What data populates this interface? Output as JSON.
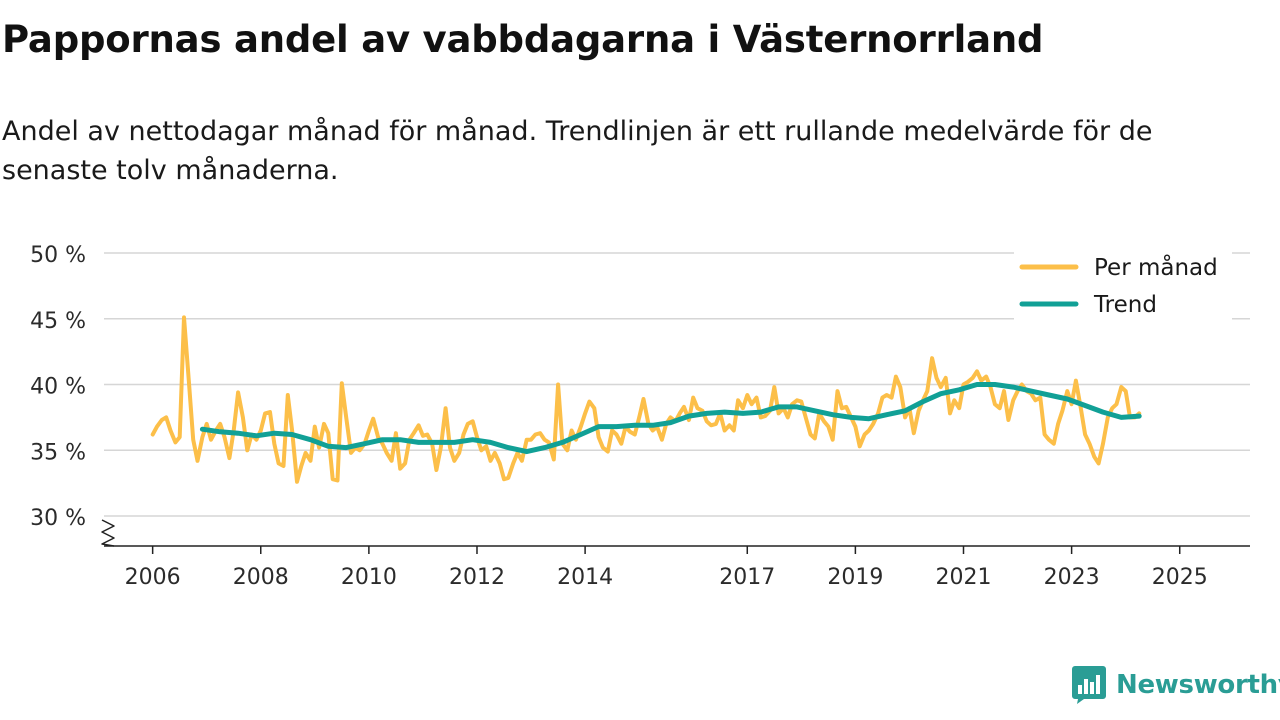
{
  "header": {
    "title": "Pappornas andel av vabbdagarna i Västernorrland",
    "subtitle": "Andel av nettodagar månad för månad. Trendlinjen är ett rullande medelvärde för de senaste tolv månaderna."
  },
  "brand": {
    "name": "Newsworthy",
    "color": "#2a9d95",
    "icon": "newsworthy-logo-icon"
  },
  "chart_data": {
    "type": "line",
    "title": "Pappornas andel av vabbdagarna i Västernorrland",
    "xlabel": "",
    "ylabel": "",
    "ylim": [
      30,
      50
    ],
    "xlim": [
      2005.1,
      2026.3
    ],
    "y_ticks": [
      30,
      35,
      40,
      45,
      50
    ],
    "y_tick_labels": [
      "30 %",
      "35 %",
      "40 %",
      "45 %",
      "50 %"
    ],
    "x_ticks": [
      2006,
      2008,
      2010,
      2012,
      2014,
      2017,
      2019,
      2021,
      2023,
      2025
    ],
    "x_tick_labels": [
      "2006",
      "2008",
      "2010",
      "2012",
      "2014",
      "2017",
      "2019",
      "2021",
      "2023",
      "2025"
    ],
    "grid": "horizontal",
    "axis_break": true,
    "legend_position": "top-right",
    "series": [
      {
        "name": "Per månad",
        "color": "#fcbf49",
        "points": [
          [
            2006.0,
            36.2
          ],
          [
            2006.08,
            36.8
          ],
          [
            2006.17,
            37.3
          ],
          [
            2006.25,
            37.5
          ],
          [
            2006.33,
            36.5
          ],
          [
            2006.42,
            35.6
          ],
          [
            2006.5,
            36.0
          ],
          [
            2006.58,
            45.1
          ],
          [
            2006.67,
            40.2
          ],
          [
            2006.75,
            35.8
          ],
          [
            2006.83,
            34.2
          ],
          [
            2006.92,
            36.0
          ],
          [
            2007.0,
            37.0
          ],
          [
            2007.08,
            35.8
          ],
          [
            2007.17,
            36.5
          ],
          [
            2007.25,
            37.0
          ],
          [
            2007.33,
            36.0
          ],
          [
            2007.42,
            34.4
          ],
          [
            2007.5,
            36.5
          ],
          [
            2007.58,
            39.4
          ],
          [
            2007.67,
            37.5
          ],
          [
            2007.75,
            35.0
          ],
          [
            2007.83,
            36.2
          ],
          [
            2007.92,
            35.8
          ],
          [
            2008.0,
            36.5
          ],
          [
            2008.08,
            37.8
          ],
          [
            2008.17,
            37.9
          ],
          [
            2008.25,
            35.5
          ],
          [
            2008.33,
            34.0
          ],
          [
            2008.42,
            33.8
          ],
          [
            2008.5,
            39.2
          ],
          [
            2008.58,
            36.5
          ],
          [
            2008.67,
            32.6
          ],
          [
            2008.75,
            33.8
          ],
          [
            2008.83,
            34.8
          ],
          [
            2008.92,
            34.2
          ],
          [
            2009.0,
            36.8
          ],
          [
            2009.08,
            35.2
          ],
          [
            2009.17,
            37.0
          ],
          [
            2009.25,
            36.3
          ],
          [
            2009.33,
            32.8
          ],
          [
            2009.42,
            32.7
          ],
          [
            2009.5,
            40.1
          ],
          [
            2009.58,
            37.5
          ],
          [
            2009.67,
            34.8
          ],
          [
            2009.75,
            35.2
          ],
          [
            2009.83,
            35.0
          ],
          [
            2009.92,
            35.5
          ],
          [
            2010.0,
            36.5
          ],
          [
            2010.08,
            37.4
          ],
          [
            2010.17,
            36.0
          ],
          [
            2010.25,
            35.5
          ],
          [
            2010.33,
            34.8
          ],
          [
            2010.42,
            34.2
          ],
          [
            2010.5,
            36.3
          ],
          [
            2010.58,
            33.6
          ],
          [
            2010.67,
            34.0
          ],
          [
            2010.75,
            35.8
          ],
          [
            2010.83,
            36.3
          ],
          [
            2010.92,
            36.9
          ],
          [
            2011.0,
            36.1
          ],
          [
            2011.08,
            36.2
          ],
          [
            2011.17,
            35.5
          ],
          [
            2011.25,
            33.5
          ],
          [
            2011.33,
            35.2
          ],
          [
            2011.42,
            38.2
          ],
          [
            2011.5,
            35.2
          ],
          [
            2011.58,
            34.2
          ],
          [
            2011.67,
            34.8
          ],
          [
            2011.75,
            36.2
          ],
          [
            2011.83,
            37.0
          ],
          [
            2011.92,
            37.2
          ],
          [
            2012.0,
            36.0
          ],
          [
            2012.08,
            35.0
          ],
          [
            2012.17,
            35.3
          ],
          [
            2012.25,
            34.2
          ],
          [
            2012.33,
            34.8
          ],
          [
            2012.42,
            34.0
          ],
          [
            2012.5,
            32.8
          ],
          [
            2012.58,
            32.9
          ],
          [
            2012.67,
            34.0
          ],
          [
            2012.75,
            34.8
          ],
          [
            2012.83,
            34.2
          ],
          [
            2012.92,
            35.8
          ],
          [
            2013.0,
            35.8
          ],
          [
            2013.08,
            36.2
          ],
          [
            2013.17,
            36.3
          ],
          [
            2013.25,
            35.8
          ],
          [
            2013.33,
            35.6
          ],
          [
            2013.42,
            34.3
          ],
          [
            2013.5,
            40.0
          ],
          [
            2013.58,
            35.5
          ],
          [
            2013.67,
            35.0
          ],
          [
            2013.75,
            36.5
          ],
          [
            2013.83,
            35.8
          ],
          [
            2013.92,
            36.8
          ],
          [
            2014.0,
            37.8
          ],
          [
            2014.08,
            38.7
          ],
          [
            2014.17,
            38.2
          ],
          [
            2014.25,
            36.0
          ],
          [
            2014.33,
            35.2
          ],
          [
            2014.42,
            34.9
          ],
          [
            2014.5,
            36.5
          ],
          [
            2014.58,
            36.2
          ],
          [
            2014.67,
            35.5
          ],
          [
            2014.75,
            36.8
          ],
          [
            2014.83,
            36.4
          ],
          [
            2014.92,
            36.2
          ],
          [
            2015.0,
            37.5
          ],
          [
            2015.08,
            38.9
          ],
          [
            2015.17,
            37.0
          ],
          [
            2015.25,
            36.5
          ],
          [
            2015.33,
            36.8
          ],
          [
            2015.42,
            35.8
          ],
          [
            2015.5,
            37.0
          ],
          [
            2015.58,
            37.5
          ],
          [
            2015.67,
            37.2
          ],
          [
            2015.75,
            37.8
          ],
          [
            2015.83,
            38.3
          ],
          [
            2015.92,
            37.3
          ],
          [
            2016.0,
            39.0
          ],
          [
            2016.08,
            38.2
          ],
          [
            2016.17,
            38.0
          ],
          [
            2016.25,
            37.2
          ],
          [
            2016.33,
            36.9
          ],
          [
            2016.42,
            37.0
          ],
          [
            2016.5,
            37.8
          ],
          [
            2016.58,
            36.5
          ],
          [
            2016.67,
            36.9
          ],
          [
            2016.75,
            36.5
          ],
          [
            2016.83,
            38.8
          ],
          [
            2016.92,
            38.2
          ],
          [
            2017.0,
            39.2
          ],
          [
            2017.08,
            38.5
          ],
          [
            2017.17,
            39.0
          ],
          [
            2017.25,
            37.5
          ],
          [
            2017.33,
            37.6
          ],
          [
            2017.42,
            38.0
          ],
          [
            2017.5,
            39.8
          ],
          [
            2017.58,
            37.8
          ],
          [
            2017.67,
            38.2
          ],
          [
            2017.75,
            37.5
          ],
          [
            2017.83,
            38.5
          ],
          [
            2017.92,
            38.8
          ],
          [
            2018.0,
            38.7
          ],
          [
            2018.08,
            37.5
          ],
          [
            2018.17,
            36.2
          ],
          [
            2018.25,
            35.9
          ],
          [
            2018.33,
            37.8
          ],
          [
            2018.42,
            37.2
          ],
          [
            2018.5,
            36.8
          ],
          [
            2018.58,
            35.8
          ],
          [
            2018.67,
            39.5
          ],
          [
            2018.75,
            38.2
          ],
          [
            2018.83,
            38.3
          ],
          [
            2018.92,
            37.5
          ],
          [
            2019.0,
            36.8
          ],
          [
            2019.08,
            35.3
          ],
          [
            2019.17,
            36.2
          ],
          [
            2019.25,
            36.5
          ],
          [
            2019.33,
            37.0
          ],
          [
            2019.42,
            37.8
          ],
          [
            2019.5,
            39.0
          ],
          [
            2019.58,
            39.2
          ],
          [
            2019.67,
            39.0
          ],
          [
            2019.75,
            40.6
          ],
          [
            2019.83,
            39.8
          ],
          [
            2019.92,
            37.5
          ],
          [
            2020.0,
            38.2
          ],
          [
            2020.08,
            36.3
          ],
          [
            2020.17,
            38.0
          ],
          [
            2020.25,
            38.8
          ],
          [
            2020.33,
            39.5
          ],
          [
            2020.42,
            42.0
          ],
          [
            2020.5,
            40.5
          ],
          [
            2020.58,
            39.8
          ],
          [
            2020.67,
            40.5
          ],
          [
            2020.75,
            37.8
          ],
          [
            2020.83,
            38.8
          ],
          [
            2020.92,
            38.2
          ],
          [
            2021.0,
            40.0
          ],
          [
            2021.08,
            40.2
          ],
          [
            2021.17,
            40.5
          ],
          [
            2021.25,
            41.0
          ],
          [
            2021.33,
            40.3
          ],
          [
            2021.42,
            40.6
          ],
          [
            2021.5,
            39.8
          ],
          [
            2021.58,
            38.5
          ],
          [
            2021.67,
            38.2
          ],
          [
            2021.75,
            39.5
          ],
          [
            2021.83,
            37.3
          ],
          [
            2021.92,
            38.8
          ],
          [
            2022.0,
            39.5
          ],
          [
            2022.08,
            40.0
          ],
          [
            2022.17,
            39.5
          ],
          [
            2022.25,
            39.3
          ],
          [
            2022.33,
            38.8
          ],
          [
            2022.42,
            39.0
          ],
          [
            2022.5,
            36.2
          ],
          [
            2022.58,
            35.8
          ],
          [
            2022.67,
            35.5
          ],
          [
            2022.75,
            37.0
          ],
          [
            2022.83,
            38.0
          ],
          [
            2022.92,
            39.5
          ],
          [
            2023.0,
            38.5
          ],
          [
            2023.08,
            40.3
          ],
          [
            2023.17,
            38.2
          ],
          [
            2023.25,
            36.2
          ],
          [
            2023.33,
            35.5
          ],
          [
            2023.42,
            34.5
          ],
          [
            2023.5,
            34.0
          ],
          [
            2023.58,
            35.5
          ],
          [
            2023.67,
            37.5
          ],
          [
            2023.75,
            38.2
          ],
          [
            2023.83,
            38.5
          ],
          [
            2023.92,
            39.8
          ],
          [
            2024.0,
            39.5
          ],
          [
            2024.08,
            37.5
          ],
          [
            2024.17,
            37.5
          ],
          [
            2024.25,
            37.8
          ]
        ]
      },
      {
        "name": "Trend",
        "color": "#11a096",
        "points": [
          [
            2006.92,
            36.6
          ],
          [
            2007.25,
            36.4
          ],
          [
            2007.58,
            36.3
          ],
          [
            2007.92,
            36.1
          ],
          [
            2008.25,
            36.3
          ],
          [
            2008.58,
            36.2
          ],
          [
            2008.92,
            35.8
          ],
          [
            2009.25,
            35.3
          ],
          [
            2009.58,
            35.2
          ],
          [
            2009.92,
            35.5
          ],
          [
            2010.25,
            35.8
          ],
          [
            2010.58,
            35.8
          ],
          [
            2010.92,
            35.6
          ],
          [
            2011.25,
            35.6
          ],
          [
            2011.58,
            35.6
          ],
          [
            2011.92,
            35.8
          ],
          [
            2012.25,
            35.6
          ],
          [
            2012.58,
            35.2
          ],
          [
            2012.92,
            34.9
          ],
          [
            2013.25,
            35.2
          ],
          [
            2013.58,
            35.6
          ],
          [
            2013.92,
            36.2
          ],
          [
            2014.25,
            36.8
          ],
          [
            2014.58,
            36.8
          ],
          [
            2014.92,
            36.9
          ],
          [
            2015.25,
            36.9
          ],
          [
            2015.58,
            37.1
          ],
          [
            2015.92,
            37.6
          ],
          [
            2016.25,
            37.8
          ],
          [
            2016.58,
            37.9
          ],
          [
            2016.92,
            37.8
          ],
          [
            2017.25,
            37.9
          ],
          [
            2017.58,
            38.3
          ],
          [
            2017.92,
            38.3
          ],
          [
            2018.25,
            38.0
          ],
          [
            2018.58,
            37.7
          ],
          [
            2018.92,
            37.5
          ],
          [
            2019.25,
            37.4
          ],
          [
            2019.58,
            37.7
          ],
          [
            2019.92,
            38.0
          ],
          [
            2020.25,
            38.7
          ],
          [
            2020.58,
            39.3
          ],
          [
            2020.92,
            39.6
          ],
          [
            2021.25,
            40.0
          ],
          [
            2021.58,
            40.0
          ],
          [
            2021.92,
            39.8
          ],
          [
            2022.25,
            39.5
          ],
          [
            2022.58,
            39.2
          ],
          [
            2022.92,
            38.9
          ],
          [
            2023.25,
            38.4
          ],
          [
            2023.58,
            37.9
          ],
          [
            2023.92,
            37.5
          ],
          [
            2024.25,
            37.6
          ]
        ]
      }
    ]
  }
}
